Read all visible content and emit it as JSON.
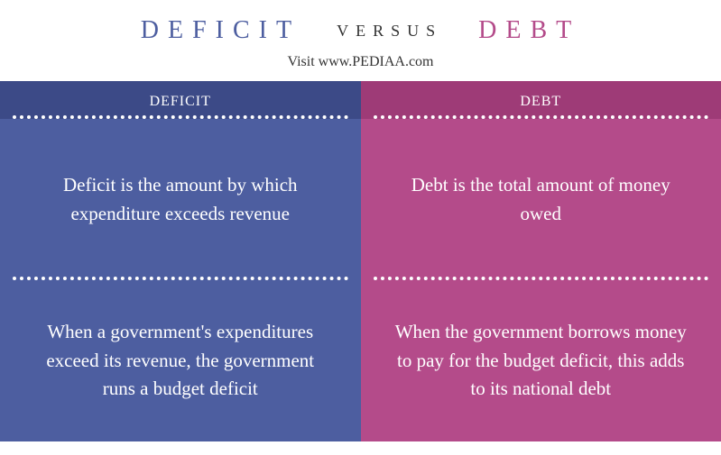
{
  "header": {
    "left_word": "DEFICIT",
    "center_word": "VERSUS",
    "right_word": "DEBT",
    "subtitle": "Visit www.PEDIAA.com",
    "left_color": "#4d5ea0",
    "right_color": "#b44b8a"
  },
  "left_column": {
    "bg_color": "#4d5ea0",
    "header": "DEFICIT",
    "header_bg": "#3c4a87",
    "cells": [
      "Deficit is the amount by which expenditure exceeds revenue",
      "When a government's expenditures exceed its revenue, the government runs a budget deficit"
    ]
  },
  "right_column": {
    "bg_color": "#b44b8a",
    "header": "DEBT",
    "header_bg": "#9e3b77",
    "cells": [
      "Debt is the total amount of money owed",
      "When the government borrows money to pay for the budget deficit, this adds to its national debt"
    ]
  }
}
